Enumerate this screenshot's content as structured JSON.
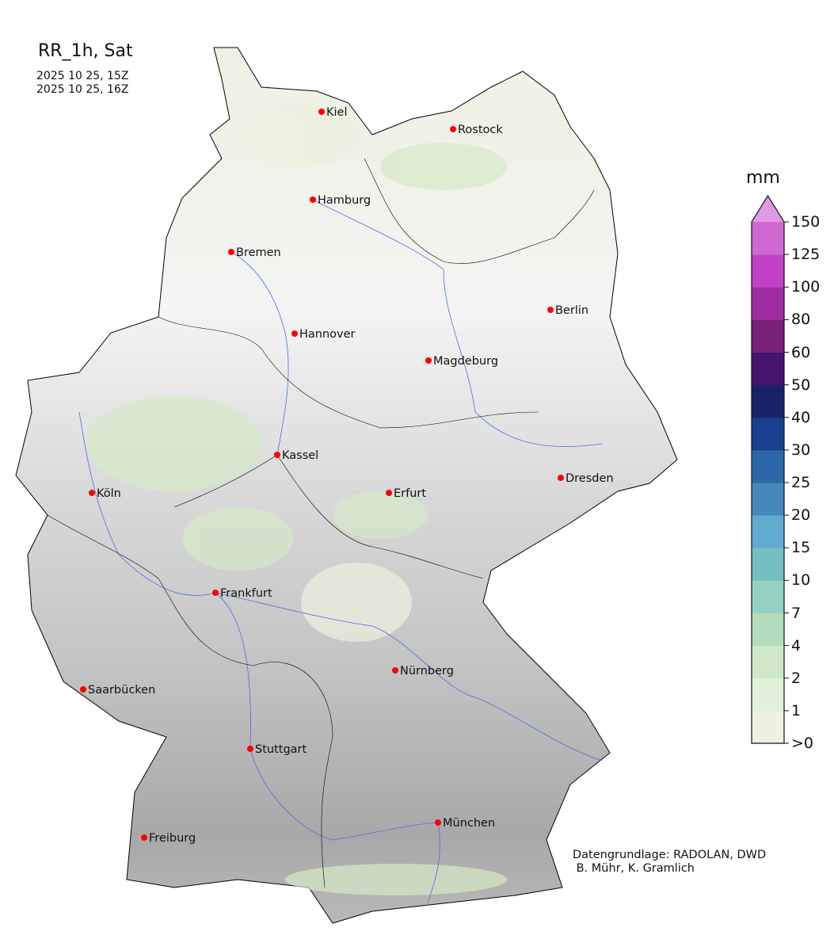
{
  "title": "RR_1h, Sat",
  "time_start": "2025 10 25, 15Z",
  "time_end": "2025 10 25, 16Z",
  "credit_line1": "Datengrundlage: RADOLAN, DWD",
  "credit_line2": " B. Mühr, K. Gramlich",
  "colorbar": {
    "unit": "mm",
    "ticks": [
      ">0",
      "1",
      "2",
      "4",
      "7",
      "10",
      "15",
      "20",
      "25",
      "30",
      "40",
      "50",
      "60",
      "80",
      "100",
      "125",
      "150"
    ],
    "colors": [
      "#f0f0e0",
      "#e1f0d8",
      "#d0e8c8",
      "#b2dcbc",
      "#96d2c2",
      "#74c0c0",
      "#60acd0",
      "#4488bc",
      "#2c68a8",
      "#183f90",
      "#18226a",
      "#46126e",
      "#78207a",
      "#a02ca4",
      "#c040c8",
      "#d068d4"
    ],
    "extend_color": "#e09ae4"
  },
  "cities": [
    "Kiel",
    "Rostock",
    "Hamburg",
    "Bremen",
    "Berlin",
    "Hannover",
    "Magdeburg",
    "Kassel",
    "Köln",
    "Erfurt",
    "Dresden",
    "Frankfurt",
    "Saarbücken",
    "Nürnberg",
    "Stuttgart",
    "Freiburg",
    "München"
  ],
  "city_marker_color": "#ff0000",
  "river_color": "#4a6ee0"
}
